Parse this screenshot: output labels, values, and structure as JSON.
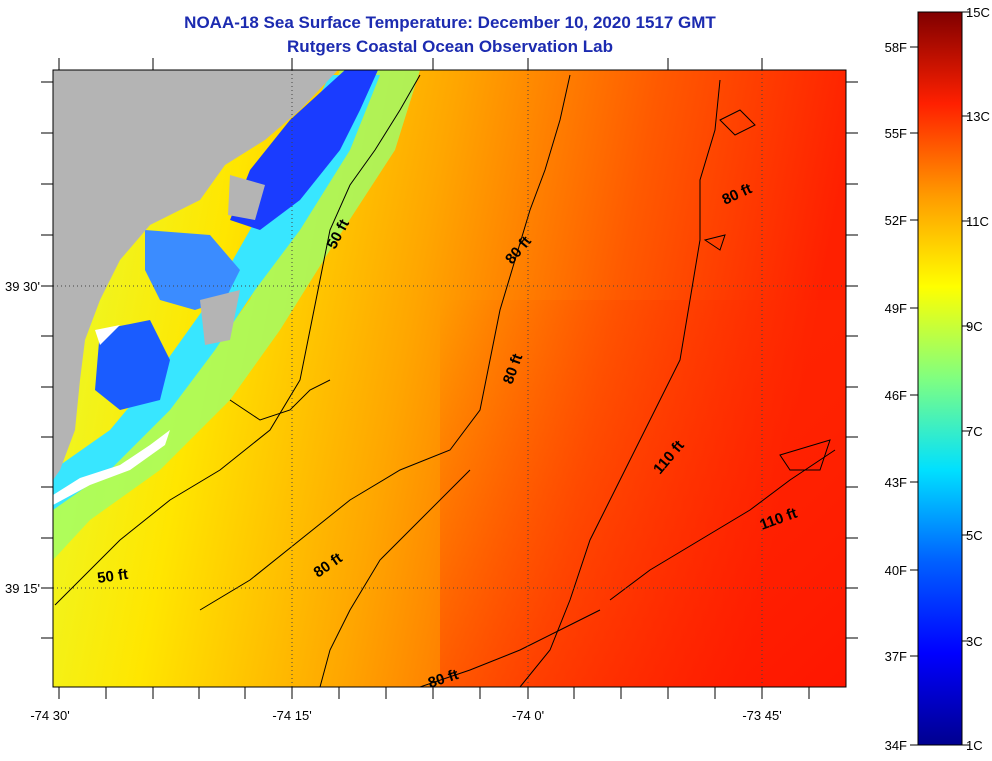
{
  "title": "NOAA-18 Sea Surface Temperature:  December 10, 2020 1517 GMT",
  "subtitle": "Rutgers Coastal Ocean Observation Lab",
  "latitude_labels": [
    "39 30'",
    "39 15'"
  ],
  "longitude_labels": [
    "-74 30'",
    "-74 15'",
    "-74 0'",
    "-73 45'"
  ],
  "contour_labels": [
    "50 ft",
    "80 ft",
    "80 ft",
    "80 ft",
    "110 ft",
    "110 ft",
    "50 ft",
    "80 ft",
    "80 ft"
  ],
  "colorbar": {
    "fahrenheit_labels": [
      "58F",
      "55F",
      "52F",
      "49F",
      "46F",
      "43F",
      "40F",
      "37F",
      "34F"
    ],
    "celsius_labels": [
      "15C",
      "13C",
      "11C",
      "9C",
      "7C",
      "5C",
      "3C",
      "1C"
    ],
    "colors": [
      "#00008f",
      "#0000ff",
      "#007fff",
      "#00ffff",
      "#7fff7f",
      "#ffff00",
      "#ff7f00",
      "#ff0000",
      "#7f0000"
    ]
  },
  "colors": {
    "land": "#b4b4b4",
    "title": "#1c2bb0"
  }
}
